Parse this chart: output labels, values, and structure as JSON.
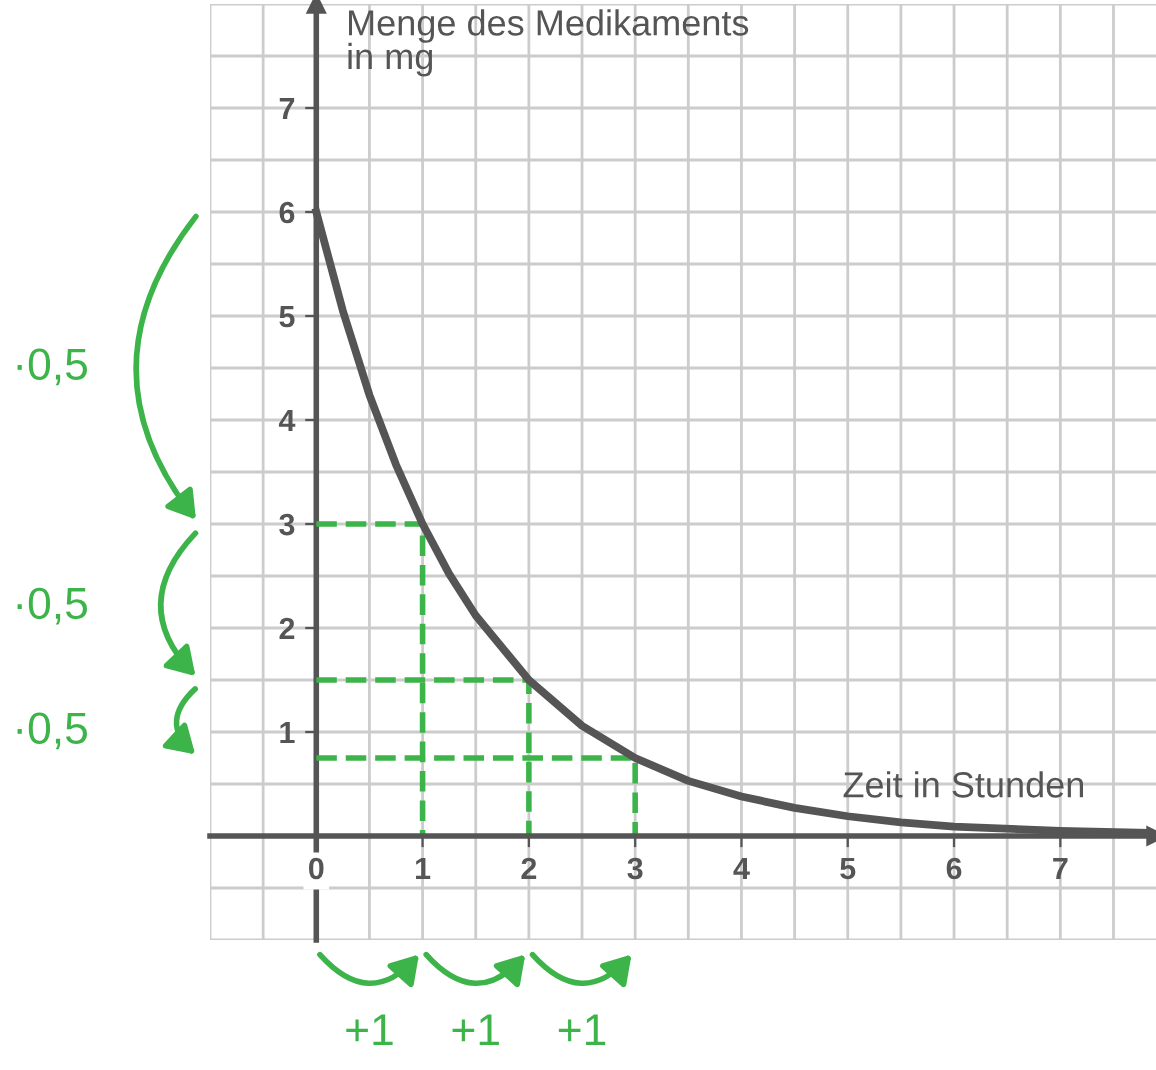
{
  "chart_data": {
    "type": "line",
    "xlabel": "Zeit in Stunden",
    "ylabel": "Menge des Medikaments\nin mg",
    "xlim": [
      -1,
      7.9
    ],
    "ylim": [
      -1,
      8
    ],
    "xticks": [
      0,
      1,
      2,
      3,
      4,
      5,
      6,
      7
    ],
    "yticks": [
      1,
      2,
      3,
      4,
      5,
      6,
      7
    ],
    "grid": true,
    "marker": "none",
    "series": [
      {
        "color": "#555555",
        "x": [
          0,
          0.25,
          0.5,
          0.75,
          1,
          1.25,
          1.5,
          2,
          2.5,
          3,
          3.5,
          4,
          4.5,
          5,
          5.5,
          6,
          7,
          7.8
        ],
        "values": [
          6,
          5.05,
          4.24,
          3.57,
          3,
          2.52,
          2.12,
          1.5,
          1.06,
          0.75,
          0.53,
          0.38,
          0.27,
          0.19,
          0.13,
          0.09,
          0.05,
          0.03
        ]
      },
      {
        "color": "#3cb44a",
        "line_style": "dashed",
        "x": [
          0,
          1,
          1
        ],
        "values": [
          3,
          3,
          0
        ]
      },
      {
        "color": "#3cb44a",
        "line_style": "dashed",
        "x": [
          0,
          2,
          2
        ],
        "values": [
          1.5,
          1.5,
          0
        ]
      },
      {
        "color": "#3cb44a",
        "line_style": "dashed",
        "x": [
          0,
          3,
          3
        ],
        "values": [
          0.75,
          0.75,
          0
        ]
      }
    ],
    "annotations": [
      "·0,5",
      "·0,5",
      "·0,5",
      "+1",
      "+1",
      "+1"
    ]
  }
}
